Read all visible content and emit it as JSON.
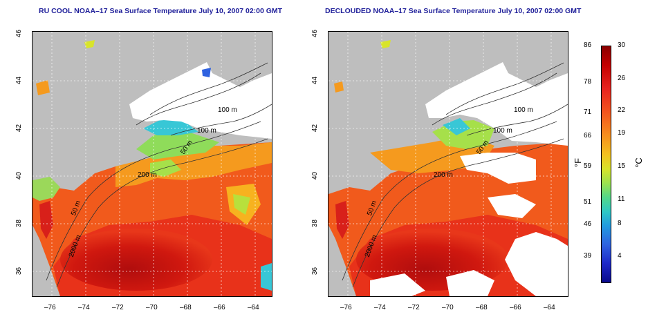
{
  "left_title": "RU COOL NOAA–17 Sea Surface Temperature July 10, 2007 02:00 GMT",
  "right_title": "DECLOUDED NOAA–17 Sea Surface Temperature July 10, 2007 02:00 GMT",
  "lat_ticks": [
    "46",
    "44",
    "42",
    "40",
    "38",
    "36"
  ],
  "lon_ticks": [
    "–76",
    "–74",
    "–72",
    "–70",
    "–68",
    "–66",
    "–64"
  ],
  "depth_labels": {
    "d100a": "100 m",
    "d100b": "100 m",
    "d50": "50 m",
    "d200": "200 m",
    "d50b": "50 m",
    "d2000": "2000 m"
  },
  "colorbar": {
    "fahrenheit": [
      "86",
      "78",
      "71",
      "66",
      "59",
      "51",
      "46",
      "39"
    ],
    "celsius": [
      "30",
      "26",
      "22",
      "19",
      "15",
      "11",
      "8",
      "4"
    ],
    "unit_f": "°F",
    "unit_c": "°C"
  },
  "colors": {
    "land": "#bebebe",
    "shelf_white": "#ffffff",
    "hot": "#d81f10",
    "warm": "#f15a1c",
    "mild": "#f59a1e",
    "cool": "#a6e04a",
    "cold": "#38c7d6"
  }
}
